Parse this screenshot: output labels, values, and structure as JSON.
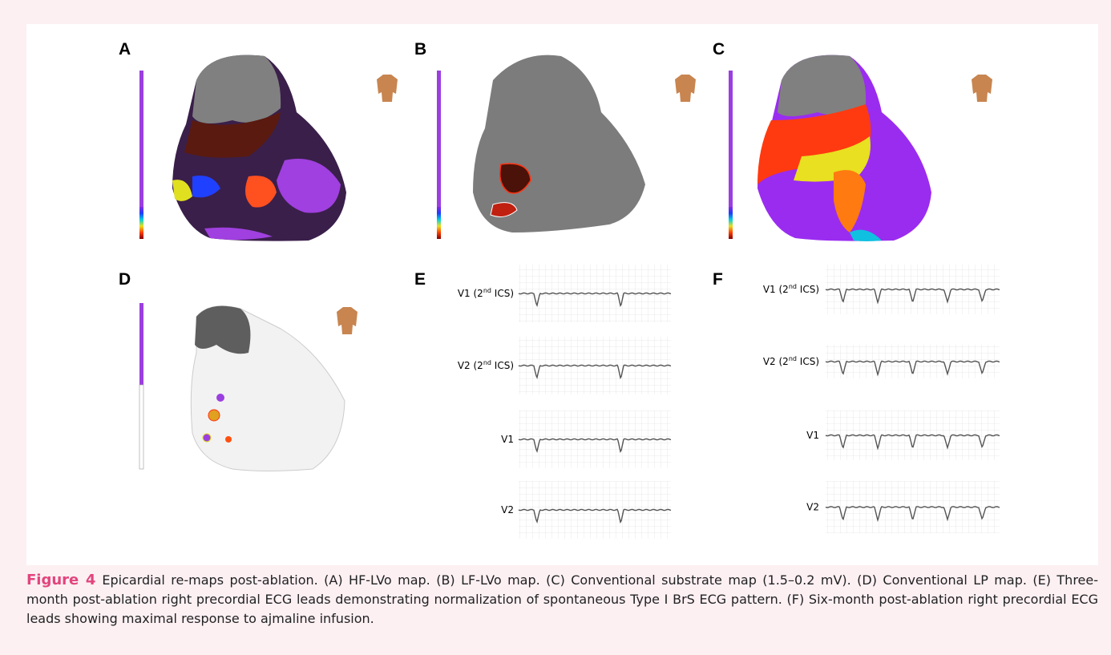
{
  "panels": [
    {
      "letter": "A"
    },
    {
      "letter": "B"
    },
    {
      "letter": "C"
    },
    {
      "letter": "D"
    },
    {
      "letter": "E"
    },
    {
      "letter": "F"
    }
  ],
  "ecg": {
    "E": [
      {
        "pre": "V1 (2",
        "sup": "nd",
        "post": " ICS)"
      },
      {
        "pre": "V2 (2",
        "sup": "nd",
        "post": " ICS)"
      },
      {
        "pre": "V1"
      },
      {
        "pre": "V2"
      }
    ],
    "F": [
      {
        "pre": "V1 (2",
        "sup": "nd",
        "post": " ICS)"
      },
      {
        "pre": "V2 (2",
        "sup": "nd",
        "post": " ICS)"
      },
      {
        "pre": "V1"
      },
      {
        "pre": "V2"
      }
    ]
  },
  "caption": {
    "label": "Figure 4",
    "text": "Epicardial re-maps post-ablation. (A) HF-LVo map. (B) LF-LVo map. (C) Conventional substrate map (1.5–0.2 mV). (D) Conventional LP map. (E) Three-month post-ablation right precordial ECG leads demonstrating normalization of spontaneous Type I BrS ECG pattern. (F) Six-month post-ablation right precordial ECG leads showing maximal response to ajmaline infusion."
  }
}
